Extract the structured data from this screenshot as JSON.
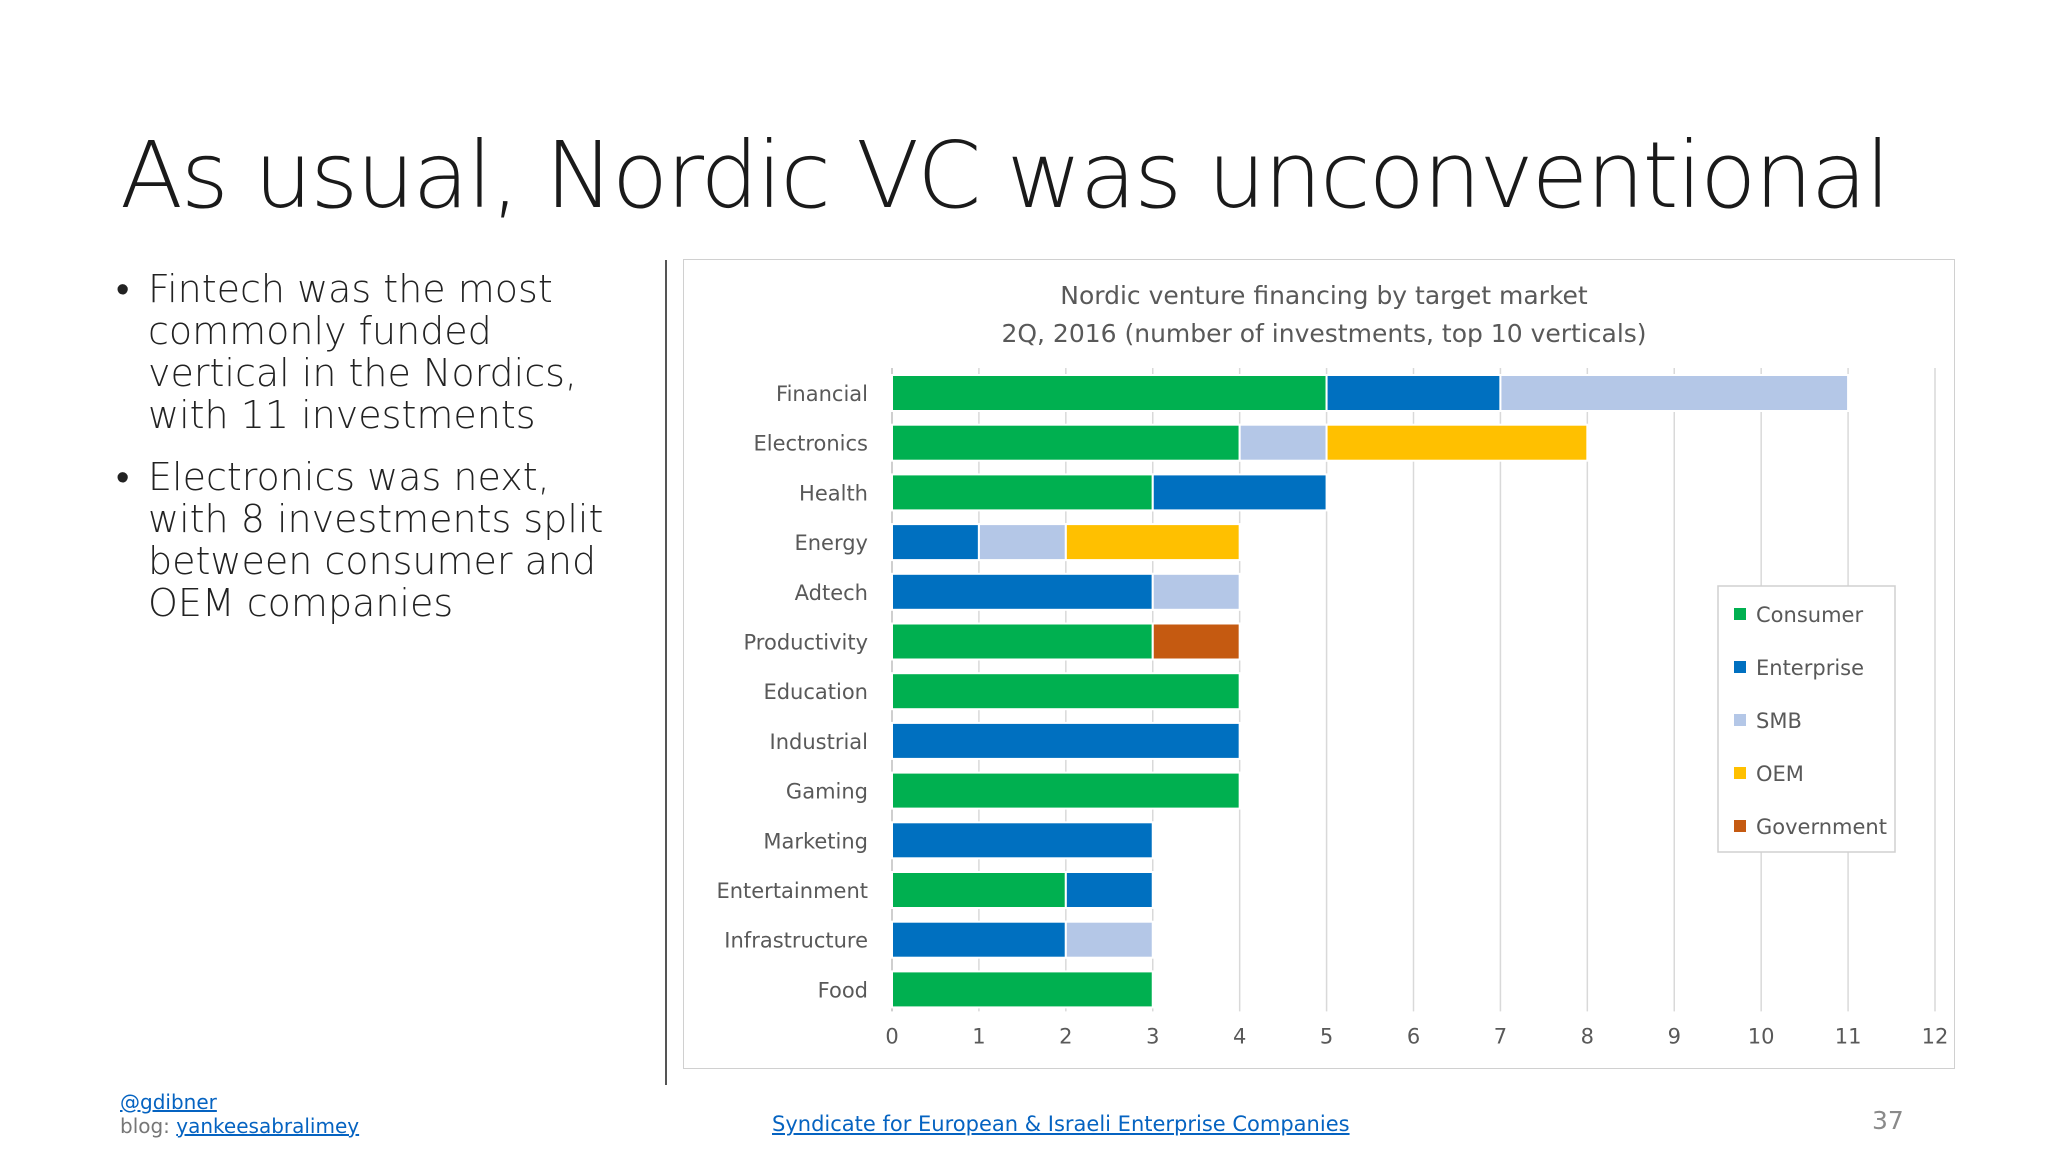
{
  "slide": {
    "title": "As usual, Nordic VC was unconventional",
    "bullets": [
      "Fintech was the most commonly funded vertical in the Nordics, with 11 investments",
      "Electronics was next, with 8 investments split between consumer and OEM companies"
    ]
  },
  "footer": {
    "handle": "@gdibner",
    "blog_prefix": "blog: ",
    "blog_link": "yankeesabralimey",
    "syndicate_link": "Syndicate for European & Israeli Enterprise Companies",
    "page_number": "37"
  },
  "chart_data": {
    "type": "bar",
    "orientation": "horizontal",
    "stacked": true,
    "title": "Nordic venture financing by target market",
    "subtitle": "2Q, 2016 (number of investments, top 10 verticals)",
    "xlabel": "",
    "ylabel": "",
    "xlim": [
      0,
      12
    ],
    "xticks": [
      "0",
      "1",
      "2",
      "3",
      "4",
      "5",
      "6",
      "7",
      "8",
      "9",
      "10",
      "11",
      "12"
    ],
    "grid": true,
    "legend_position": "right",
    "categories": [
      "Financial",
      "Electronics",
      "Health",
      "Energy",
      "Adtech",
      "Productivity",
      "Education",
      "Industrial",
      "Gaming",
      "Marketing",
      "Entertainment",
      "Infrastructure",
      "Food"
    ],
    "series": [
      {
        "name": "Consumer",
        "color": "#00b050",
        "values": [
          5,
          4,
          3,
          0,
          0,
          3,
          4,
          0,
          4,
          0,
          2,
          0,
          3
        ]
      },
      {
        "name": "Enterprise",
        "color": "#0070c0",
        "values": [
          2,
          0,
          2,
          1,
          3,
          0,
          0,
          4,
          0,
          3,
          1,
          2,
          0
        ]
      },
      {
        "name": "SMB",
        "color": "#b4c7e7",
        "values": [
          4,
          1,
          0,
          1,
          1,
          0,
          0,
          0,
          0,
          0,
          0,
          1,
          0
        ]
      },
      {
        "name": "OEM",
        "color": "#ffc000",
        "values": [
          0,
          3,
          0,
          2,
          0,
          0,
          0,
          0,
          0,
          0,
          0,
          0,
          0
        ]
      },
      {
        "name": "Government",
        "color": "#c55a11",
        "values": [
          0,
          0,
          0,
          0,
          0,
          1,
          0,
          0,
          0,
          0,
          0,
          0,
          0
        ]
      }
    ]
  }
}
